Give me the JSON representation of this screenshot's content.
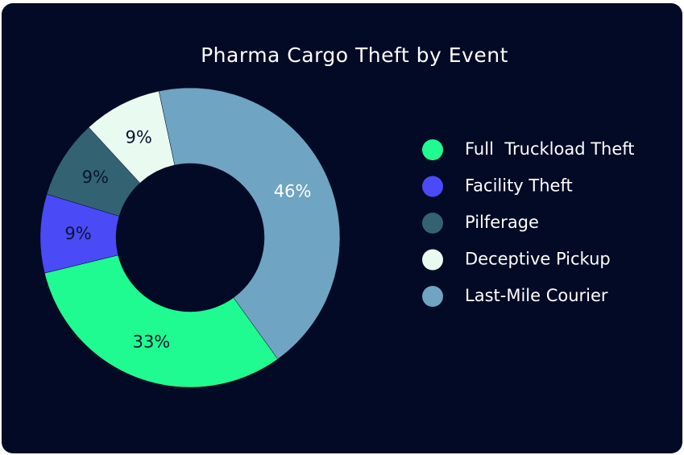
{
  "chart_data": {
    "type": "pie",
    "title": "Pharma Cargo Theft by Event",
    "categories": [
      "Full  Truckload Theft",
      "Facility Theft",
      "Pilferage",
      "Deceptive Pickup",
      "Last-Mile Courier"
    ],
    "values": [
      33,
      9,
      9,
      9,
      46
    ],
    "value_labels": [
      "33%",
      "9%",
      "9%",
      "9%",
      "46%"
    ],
    "colors": [
      "#1ffb90",
      "#4a4af6",
      "#336373",
      "#e9fbf1",
      "#6fa4c2"
    ],
    "legend": "right"
  }
}
